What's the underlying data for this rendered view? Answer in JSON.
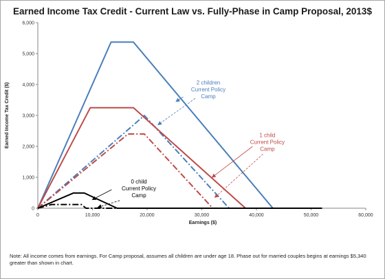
{
  "chart_data": {
    "type": "line",
    "title": "Earned Income Tax Credit - Current Law vs. Fully-Phase in Camp Proposal,  2013$",
    "xlabel": "Earnings ($)",
    "ylabel": "Earned Income Tax Credit ($)",
    "xlim": [
      0,
      60000
    ],
    "ylim": [
      0,
      6000
    ],
    "xticks": [
      0,
      10000,
      20000,
      30000,
      40000,
      50000,
      60000
    ],
    "xtick_labels": [
      "0",
      "10,000",
      "20,000",
      "30,000",
      "40,000",
      "50,000",
      "60,000"
    ],
    "yticks": [
      0,
      1000,
      2000,
      3000,
      4000,
      5000,
      6000
    ],
    "ytick_labels": [
      "0",
      "1,000",
      "2,000",
      "3,000",
      "4,000",
      "5,000",
      "6,000"
    ],
    "grid": false,
    "series": [
      {
        "color": "#4a7ebb",
        "dash": "solid",
        "x": [
          0,
          13400,
          17500,
          43000,
          52000
        ],
        "y": [
          0,
          5372,
          5372,
          0,
          0
        ]
      },
      {
        "color": "#4a7ebb",
        "dash": "dashdot",
        "x": [
          0,
          19500,
          35000,
          52000
        ],
        "y": [
          0,
          3000,
          0,
          0
        ]
      },
      {
        "color": "#be4b48",
        "dash": "solid",
        "x": [
          0,
          9600,
          17500,
          38000,
          52000
        ],
        "y": [
          0,
          3250,
          3250,
          0,
          0
        ]
      },
      {
        "color": "#be4b48",
        "dash": "dashdot",
        "x": [
          0,
          16500,
          19500,
          32000,
          52000
        ],
        "y": [
          0,
          2400,
          2400,
          0,
          0
        ]
      },
      {
        "color": "#000000",
        "dash": "solid",
        "x": [
          0,
          6500,
          8500,
          14500,
          52000
        ],
        "y": [
          0,
          490,
          490,
          0,
          0
        ]
      },
      {
        "color": "#000000",
        "dash": "dashdot",
        "x": [
          0,
          2500,
          8000,
          8800,
          52000
        ],
        "y": [
          0,
          120,
          120,
          0,
          0
        ]
      }
    ],
    "annotations": [
      {
        "lines": [
          "2 children",
          "Current Policy",
          "Camp"
        ],
        "color": "#4a7ebb",
        "x": 31200,
        "y": 4000
      },
      {
        "lines": [
          "1 child",
          "Current Policy",
          "Camp"
        ],
        "color": "#be4b48",
        "x": 42000,
        "y": 2300
      },
      {
        "lines": [
          "0 child",
          "Current Policy",
          "Camp"
        ],
        "color": "#000000",
        "x": 18500,
        "y": 800
      }
    ],
    "arrows": [
      {
        "color": "#4a7ebb",
        "dash": "solid",
        "from": [
          26600,
          3600
        ],
        "to": [
          25300,
          3450
        ]
      },
      {
        "color": "#4a7ebb",
        "dash": "dashed",
        "from": [
          28800,
          3550
        ],
        "to": [
          22000,
          2700
        ]
      },
      {
        "color": "#be4b48",
        "dash": "solid",
        "from": [
          39300,
          2000
        ],
        "to": [
          31900,
          1000
        ]
      },
      {
        "color": "#be4b48",
        "dash": "dashed",
        "from": [
          41200,
          1750
        ],
        "to": [
          32400,
          350
        ]
      },
      {
        "color": "#000000",
        "dash": "solid",
        "from": [
          13500,
          600
        ],
        "to": [
          10000,
          280
        ]
      },
      {
        "color": "#000000",
        "dash": "dashed",
        "from": [
          15000,
          250
        ],
        "to": [
          11000,
          30
        ]
      }
    ]
  },
  "note": "Note: All income comes from earnings. For Camp proposal, assumes all children are under age 18. Phase out for married couples begins at earnings $5,340 greater than shown in chart."
}
